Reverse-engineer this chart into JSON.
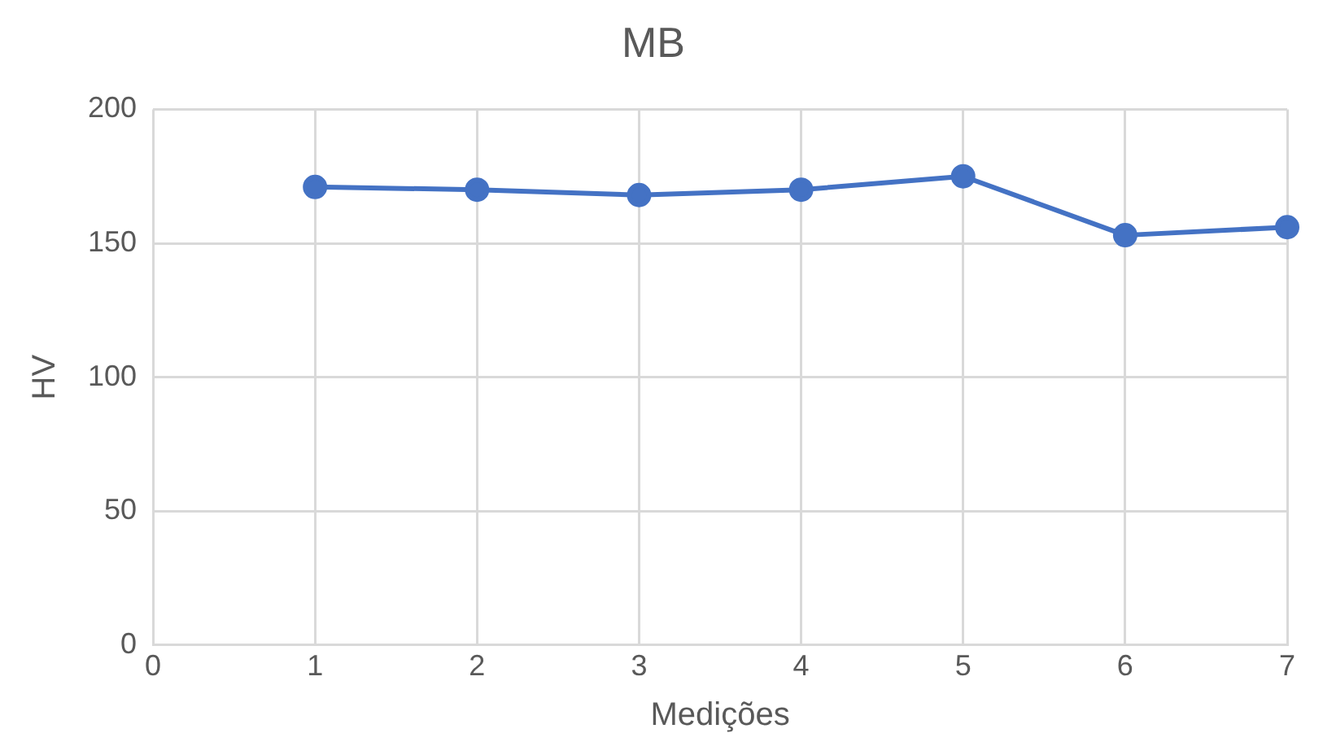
{
  "chart_data": {
    "type": "line",
    "title": "MB",
    "xlabel": "Medições",
    "ylabel": "HV",
    "x": [
      1,
      2,
      3,
      4,
      5,
      6,
      7
    ],
    "series": [
      {
        "color": "#4472c4",
        "values": [
          171,
          170,
          168,
          170,
          175,
          153,
          156
        ]
      }
    ],
    "xlim": [
      0,
      7
    ],
    "xticks": [
      0,
      1,
      2,
      3,
      4,
      5,
      6,
      7
    ],
    "ylim": [
      0,
      200
    ],
    "yticks": [
      0,
      50,
      100,
      150,
      200
    ],
    "grid": true,
    "legend": false,
    "marker": "circle",
    "line_style": "solid"
  }
}
